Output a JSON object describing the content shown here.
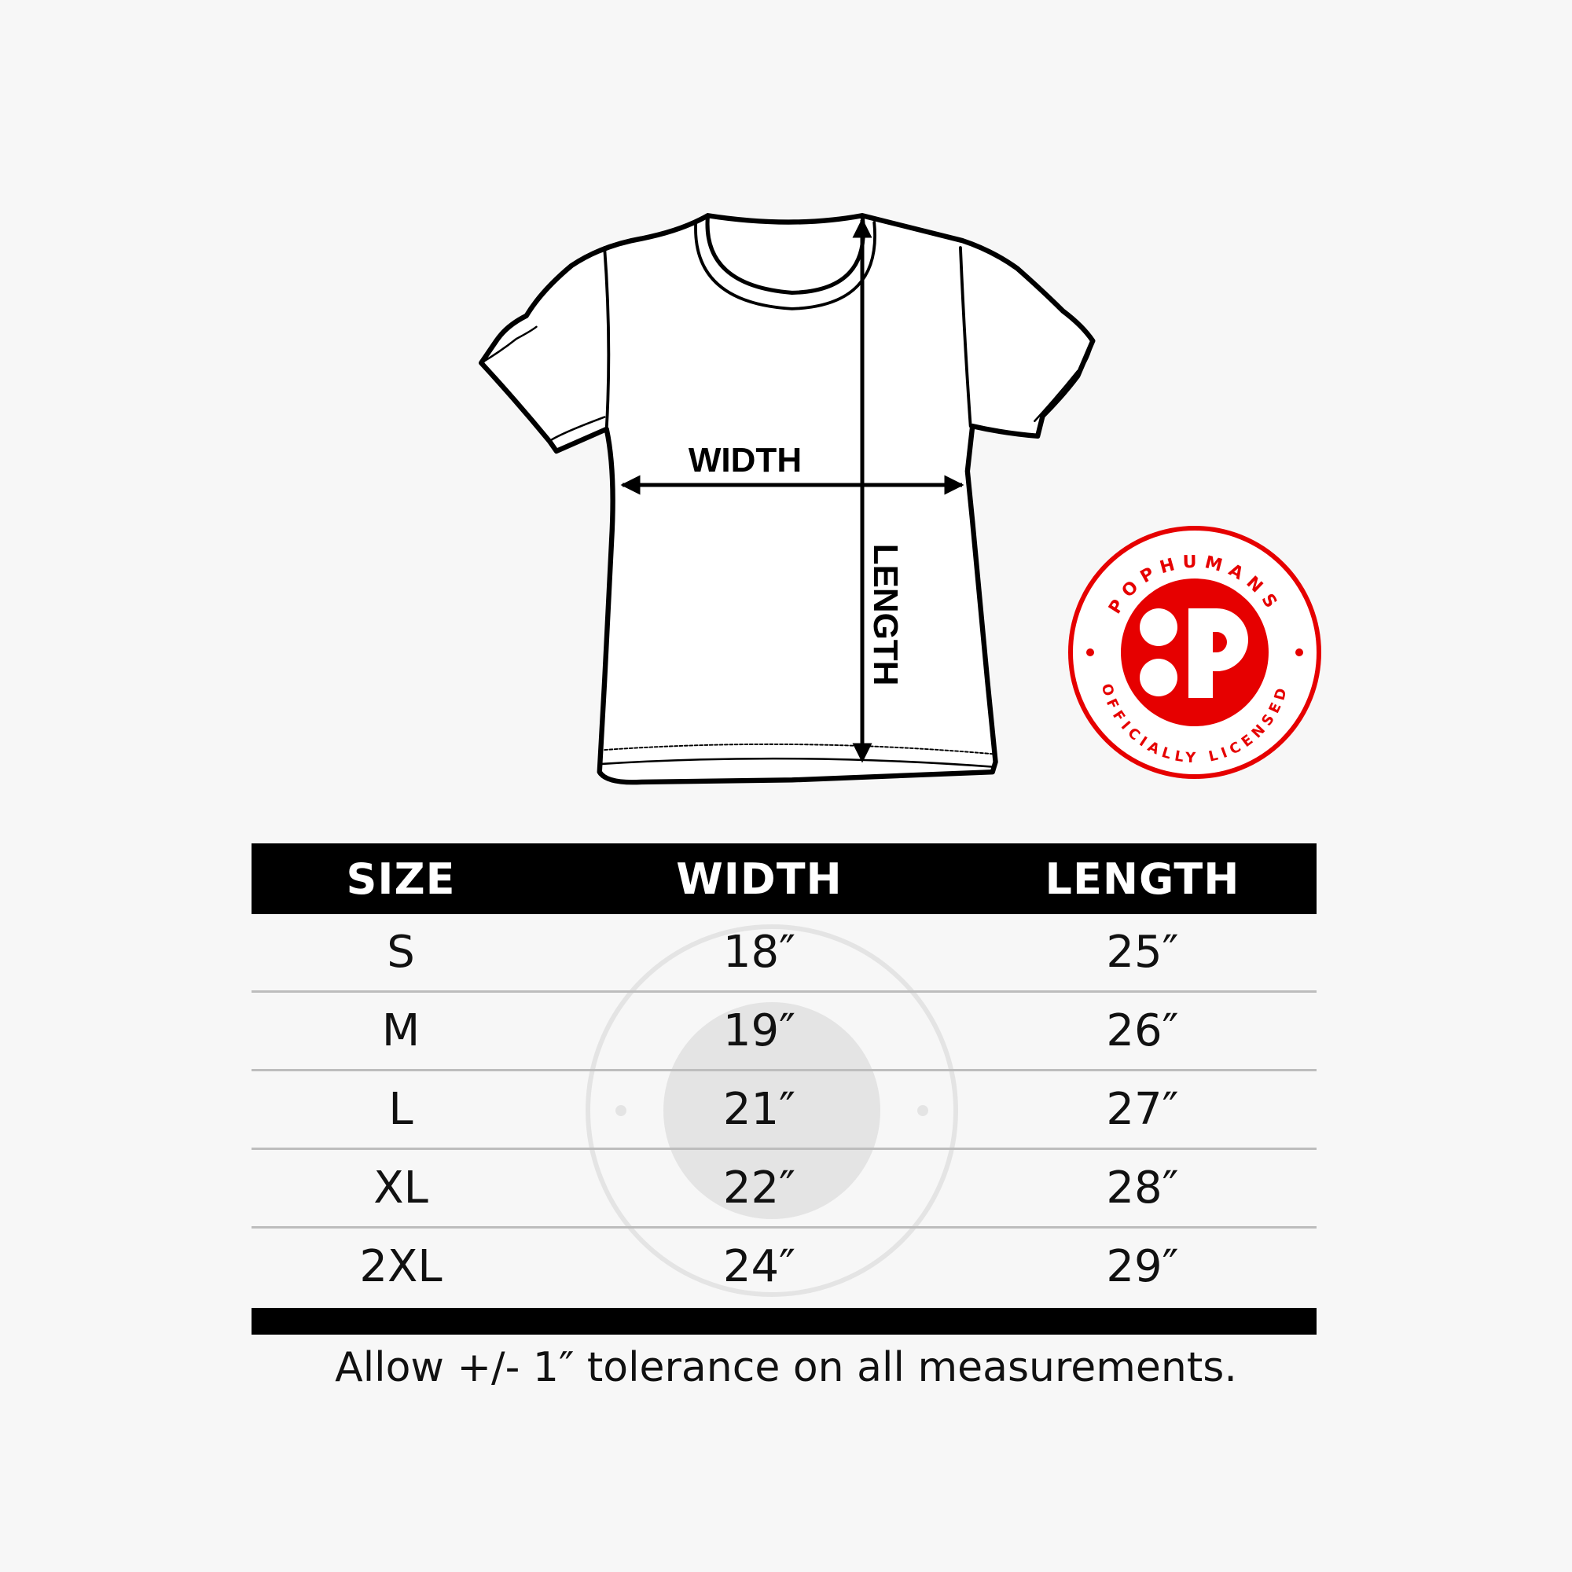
{
  "diagram": {
    "width_label": "WIDTH",
    "length_label": "LENGTH"
  },
  "badge": {
    "brand": "POPHUMANS",
    "tagline": "OFFICIALLY LICENSED",
    "color": "#e60000"
  },
  "table": {
    "headers": [
      "SIZE",
      "WIDTH",
      "LENGTH"
    ],
    "rows": [
      {
        "size": "S",
        "width": "18″",
        "length": "25″"
      },
      {
        "size": "M",
        "width": "19″",
        "length": "26″"
      },
      {
        "size": "L",
        "width": "21″",
        "length": "27″"
      },
      {
        "size": "XL",
        "width": "22″",
        "length": "28″"
      },
      {
        "size": "2XL",
        "width": "24″",
        "length": "29″"
      }
    ]
  },
  "footer": "Allow +/- 1″ tolerance on all measurements."
}
